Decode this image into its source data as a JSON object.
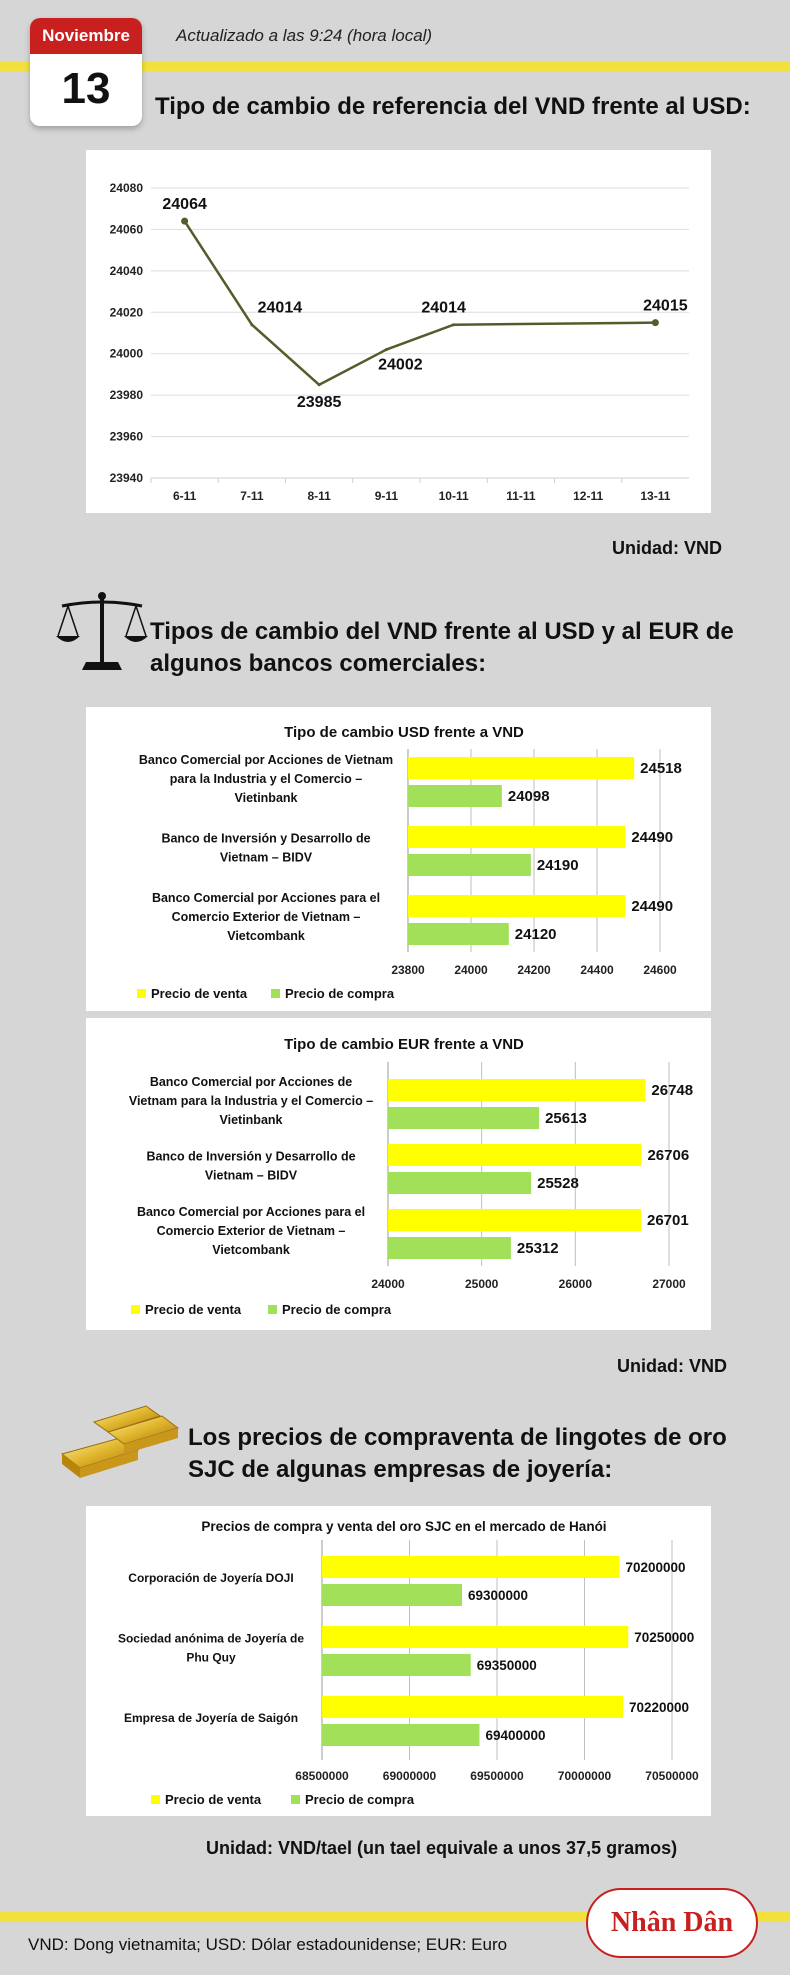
{
  "header": {
    "month": "Noviembre",
    "day": "13",
    "updated": "Actualizado a las 9:24 (hora local)",
    "title": "Tipo de cambio de referencia del VND frente al USD:"
  },
  "section1_unit": "Unidad: VND",
  "section2": {
    "title_line1": "Tipos de cambio del VND frente al USD y al EUR de",
    "title_line2": "algunos bancos comerciales:",
    "unit": "Unidad: VND"
  },
  "section3": {
    "title_line1": "Los precios de compraventa de lingotes de oro",
    "title_line2": "SJC de algunas empresas de joyería:",
    "unit": "Unidad: VND/tael (un tael equivale a unos 37,5 gramos)"
  },
  "footer": "VND: Dong vietnamita; USD: Dólar estadounidense; EUR: Euro",
  "logo": "Nhân Dân",
  "colors": {
    "sell": "#ffff00",
    "buy": "#a3e05a",
    "line": "#555b2a",
    "calendar": "#c8201f",
    "band": "#f3e03c"
  },
  "chart_data": [
    {
      "type": "line",
      "title": "",
      "categories": [
        "6-11",
        "7-11",
        "8-11",
        "9-11",
        "10-11",
        "11-11",
        "12-11",
        "13-11"
      ],
      "x": [
        "6-11",
        "7-11",
        "8-11",
        "9-11",
        "10-11",
        "13-11"
      ],
      "values": [
        24064,
        24014,
        23985,
        24002,
        24014,
        24015
      ],
      "data_labels": [
        "24064",
        "24014",
        "23985",
        "24002",
        "24014",
        "24015"
      ],
      "yticks": [
        "24080",
        "24060",
        "24040",
        "24020",
        "24000",
        "23980",
        "23960",
        "23940"
      ],
      "ylim": [
        23940,
        24080
      ],
      "grid": true
    },
    {
      "type": "bar",
      "title": "Tipo de cambio USD frente a VND",
      "categories": [
        [
          "Banco Comercial por Acciones de Vietnam",
          "para la Industria y el Comercio –",
          "Vietinbank"
        ],
        [
          "Banco de Inversión y Desarrollo de",
          "Vietnam – BIDV"
        ],
        [
          "Banco Comercial por Acciones para el",
          "Comercio Exterior de Vietnam –",
          "Vietcombank"
        ]
      ],
      "series": [
        {
          "name": "Precio de venta",
          "values": [
            24518,
            24490,
            24490
          ]
        },
        {
          "name": "Precio de compra",
          "values": [
            24098,
            24190,
            24120
          ]
        }
      ],
      "xticks": [
        "23800",
        "24000",
        "24200",
        "24400",
        "24600"
      ],
      "xlim": [
        23800,
        24600
      ],
      "legend": "bottom-left"
    },
    {
      "type": "bar",
      "title": "Tipo de cambio EUR frente a VND",
      "categories": [
        [
          "Banco Comercial por Acciones de",
          "Vietnam para la Industria y el Comercio –",
          "Vietinbank"
        ],
        [
          "Banco de Inversión y Desarrollo de",
          "Vietnam – BIDV"
        ],
        [
          "Banco Comercial por Acciones para el",
          "Comercio Exterior de Vietnam –",
          "Vietcombank"
        ]
      ],
      "series": [
        {
          "name": "Precio de venta",
          "values": [
            26748,
            26706,
            26701
          ]
        },
        {
          "name": "Precio de compra",
          "values": [
            25613,
            25528,
            25312
          ]
        }
      ],
      "xticks": [
        "24000",
        "25000",
        "26000",
        "27000"
      ],
      "xlim": [
        24000,
        27000
      ],
      "legend": "bottom-left"
    },
    {
      "type": "bar",
      "title": "Precios de compra y venta del oro SJC en el mercado de Hanói",
      "categories": [
        [
          "Corporación de Joyería DOJI"
        ],
        [
          "Sociedad anónima de Joyería de",
          "Phu Quy"
        ],
        [
          "Empresa de Joyería de Saigón"
        ]
      ],
      "series": [
        {
          "name": "Precio de venta",
          "values": [
            70200000,
            70250000,
            70220000
          ]
        },
        {
          "name": "Precio de compra",
          "values": [
            69300000,
            69350000,
            69400000
          ]
        }
      ],
      "xticks": [
        "68500000",
        "69000000",
        "69500000",
        "70000000",
        "70500000"
      ],
      "xlim": [
        68500000,
        70500000
      ],
      "legend": "bottom-left"
    }
  ]
}
